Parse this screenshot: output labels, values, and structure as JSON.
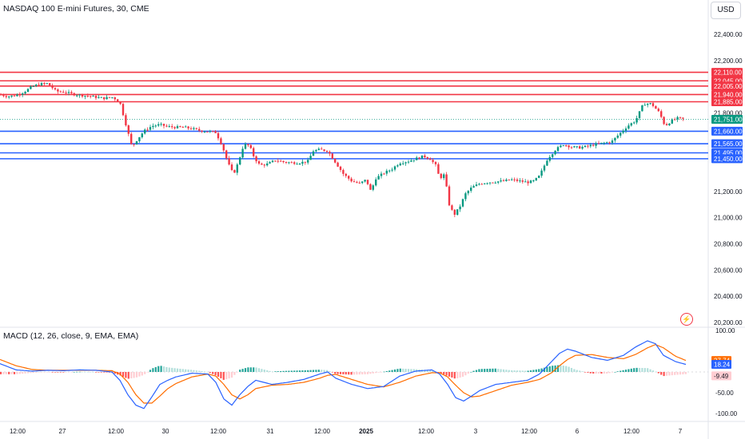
{
  "symbol_title": "NASDAQ 100 E-mini Futures, 30, CME",
  "currency_button": "USD",
  "alert_icon": "lightning-icon",
  "chart_data": [
    {
      "type": "candlestick",
      "title": "NASDAQ 100 E-mini Futures, 30, CME",
      "ylim": [
        20200,
        22500
      ],
      "y_ticks": [
        {
          "label": "22,400.00",
          "value": 22400
        },
        {
          "label": "22,200.00",
          "value": 22200
        },
        {
          "label": "21,800.00",
          "value": 21800
        },
        {
          "label": "21,200.00",
          "value": 21200
        },
        {
          "label": "21,000.00",
          "value": 21000
        },
        {
          "label": "20,800.00",
          "value": 20800
        },
        {
          "label": "20,600.00",
          "value": 20600
        },
        {
          "label": "20,400.00",
          "value": 20400
        },
        {
          "label": "20,200.00",
          "value": 20200
        }
      ],
      "x_ticks": [
        "12:00",
        "27",
        "12:00",
        "30",
        "12:00",
        "31",
        "12:00",
        "2025",
        "12:00",
        "3",
        "12:00",
        "6",
        "12:00",
        "7"
      ],
      "resistance_levels": [
        {
          "label": "22,110.00",
          "value": 22110
        },
        {
          "label": "22,045.00",
          "value": 22045
        },
        {
          "label": "22,005.00",
          "value": 22005
        },
        {
          "label": "21,940.00",
          "value": 21940
        },
        {
          "label": "21,885.00",
          "value": 21885
        }
      ],
      "support_levels": [
        {
          "label": "21,660.00",
          "value": 21660
        },
        {
          "label": "21,565.00",
          "value": 21565
        },
        {
          "label": "21,495.00",
          "value": 21495
        },
        {
          "label": "21,450.00",
          "value": 21450
        }
      ],
      "last_price": {
        "label": "21,751.00",
        "value": 21751
      },
      "path_points": [
        [
          0,
          21940
        ],
        [
          10,
          21925
        ],
        [
          20,
          21935
        ],
        [
          30,
          21960
        ],
        [
          40,
          22000
        ],
        [
          50,
          22020
        ],
        [
          60,
          22025
        ],
        [
          70,
          21965
        ],
        [
          80,
          21960
        ],
        [
          90,
          21945
        ],
        [
          100,
          21935
        ],
        [
          110,
          21930
        ],
        [
          120,
          21920
        ],
        [
          130,
          21912
        ],
        [
          140,
          21920
        ],
        [
          145,
          21905
        ],
        [
          150,
          21880
        ],
        [
          158,
          21700
        ],
        [
          165,
          21540
        ],
        [
          172,
          21600
        ],
        [
          180,
          21660
        ],
        [
          190,
          21700
        ],
        [
          200,
          21710
        ],
        [
          210,
          21695
        ],
        [
          220,
          21690
        ],
        [
          230,
          21690
        ],
        [
          240,
          21680
        ],
        [
          250,
          21665
        ],
        [
          260,
          21660
        ],
        [
          270,
          21650
        ],
        [
          278,
          21550
        ],
        [
          285,
          21420
        ],
        [
          292,
          21330
        ],
        [
          298,
          21420
        ],
        [
          305,
          21560
        ],
        [
          312,
          21550
        ],
        [
          318,
          21460
        ],
        [
          325,
          21400
        ],
        [
          335,
          21410
        ],
        [
          345,
          21440
        ],
        [
          355,
          21425
        ],
        [
          365,
          21420
        ],
        [
          375,
          21420
        ],
        [
          385,
          21430
        ],
        [
          392,
          21510
        ],
        [
          400,
          21520
        ],
        [
          410,
          21510
        ],
        [
          420,
          21420
        ],
        [
          430,
          21330
        ],
        [
          440,
          21280
        ],
        [
          450,
          21260
        ],
        [
          458,
          21290
        ],
        [
          464,
          21200
        ],
        [
          470,
          21300
        ],
        [
          480,
          21340
        ],
        [
          490,
          21370
        ],
        [
          500,
          21420
        ],
        [
          510,
          21430
        ],
        [
          520,
          21450
        ],
        [
          530,
          21470
        ],
        [
          538,
          21450
        ],
        [
          545,
          21400
        ],
        [
          550,
          21300
        ],
        [
          556,
          21330
        ],
        [
          562,
          21100
        ],
        [
          568,
          21020
        ],
        [
          575,
          21080
        ],
        [
          582,
          21180
        ],
        [
          590,
          21230
        ],
        [
          600,
          21260
        ],
        [
          610,
          21270
        ],
        [
          620,
          21275
        ],
        [
          630,
          21280
        ],
        [
          640,
          21290
        ],
        [
          650,
          21280
        ],
        [
          660,
          21270
        ],
        [
          668,
          21280
        ],
        [
          675,
          21320
        ],
        [
          685,
          21450
        ],
        [
          695,
          21520
        ],
        [
          705,
          21560
        ],
        [
          715,
          21540
        ],
        [
          725,
          21535
        ],
        [
          735,
          21545
        ],
        [
          745,
          21560
        ],
        [
          755,
          21570
        ],
        [
          765,
          21580
        ],
        [
          775,
          21640
        ],
        [
          785,
          21700
        ],
        [
          795,
          21740
        ],
        [
          805,
          21870
        ],
        [
          815,
          21870
        ],
        [
          825,
          21800
        ],
        [
          832,
          21700
        ],
        [
          840,
          21740
        ],
        [
          848,
          21760
        ],
        [
          856,
          21751
        ]
      ]
    },
    {
      "type": "macd",
      "title": "MACD (12, 26, close, 9, EMA, EMA)",
      "ylim": [
        -100,
        100
      ],
      "y_ticks": [
        {
          "label": "100.00",
          "value": 100
        },
        {
          "label": "-50.00",
          "value": -50
        },
        {
          "label": "-100.00",
          "value": -100
        }
      ],
      "value_badges": [
        {
          "label": "27.74",
          "value": 27.74,
          "color": "#ff6d00"
        },
        {
          "label": "18.24",
          "value": 18.24,
          "color": "#2962ff"
        },
        {
          "label": "-9.49",
          "value": -9.49,
          "color": "#ffcdd2"
        }
      ],
      "macd_points": [
        [
          0,
          20
        ],
        [
          20,
          5
        ],
        [
          40,
          2
        ],
        [
          60,
          4
        ],
        [
          80,
          3
        ],
        [
          100,
          5
        ],
        [
          120,
          4
        ],
        [
          140,
          0
        ],
        [
          150,
          -20
        ],
        [
          160,
          -55
        ],
        [
          170,
          -80
        ],
        [
          180,
          -88
        ],
        [
          190,
          -60
        ],
        [
          200,
          -30
        ],
        [
          210,
          -20
        ],
        [
          220,
          -12
        ],
        [
          240,
          -3
        ],
        [
          260,
          -5
        ],
        [
          270,
          -25
        ],
        [
          280,
          -65
        ],
        [
          290,
          -80
        ],
        [
          300,
          -55
        ],
        [
          310,
          -35
        ],
        [
          320,
          -20
        ],
        [
          340,
          -30
        ],
        [
          360,
          -25
        ],
        [
          380,
          -18
        ],
        [
          400,
          -5
        ],
        [
          410,
          0
        ],
        [
          420,
          -15
        ],
        [
          440,
          -30
        ],
        [
          460,
          -40
        ],
        [
          480,
          -35
        ],
        [
          500,
          -10
        ],
        [
          520,
          2
        ],
        [
          540,
          5
        ],
        [
          550,
          -5
        ],
        [
          560,
          -30
        ],
        [
          570,
          -62
        ],
        [
          580,
          -70
        ],
        [
          590,
          -58
        ],
        [
          600,
          -45
        ],
        [
          620,
          -30
        ],
        [
          640,
          -25
        ],
        [
          660,
          -20
        ],
        [
          675,
          -5
        ],
        [
          690,
          25
        ],
        [
          700,
          45
        ],
        [
          710,
          55
        ],
        [
          720,
          50
        ],
        [
          740,
          35
        ],
        [
          760,
          28
        ],
        [
          780,
          40
        ],
        [
          795,
          60
        ],
        [
          810,
          75
        ],
        [
          820,
          68
        ],
        [
          830,
          40
        ],
        [
          845,
          25
        ],
        [
          858,
          18.24
        ]
      ],
      "signal_points": [
        [
          0,
          30
        ],
        [
          20,
          15
        ],
        [
          40,
          6
        ],
        [
          60,
          4
        ],
        [
          80,
          4
        ],
        [
          100,
          4
        ],
        [
          120,
          4
        ],
        [
          140,
          3
        ],
        [
          150,
          -5
        ],
        [
          160,
          -25
        ],
        [
          170,
          -55
        ],
        [
          180,
          -75
        ],
        [
          190,
          -75
        ],
        [
          200,
          -58
        ],
        [
          210,
          -40
        ],
        [
          220,
          -28
        ],
        [
          240,
          -12
        ],
        [
          260,
          -5
        ],
        [
          270,
          -10
        ],
        [
          280,
          -30
        ],
        [
          290,
          -55
        ],
        [
          300,
          -65
        ],
        [
          310,
          -55
        ],
        [
          320,
          -40
        ],
        [
          340,
          -32
        ],
        [
          360,
          -30
        ],
        [
          380,
          -25
        ],
        [
          400,
          -15
        ],
        [
          410,
          -8
        ],
        [
          420,
          -6
        ],
        [
          440,
          -18
        ],
        [
          460,
          -30
        ],
        [
          480,
          -36
        ],
        [
          500,
          -25
        ],
        [
          520,
          -10
        ],
        [
          540,
          -2
        ],
        [
          550,
          -2
        ],
        [
          560,
          -12
        ],
        [
          570,
          -32
        ],
        [
          580,
          -50
        ],
        [
          590,
          -60
        ],
        [
          600,
          -58
        ],
        [
          620,
          -45
        ],
        [
          640,
          -32
        ],
        [
          660,
          -25
        ],
        [
          675,
          -18
        ],
        [
          690,
          -2
        ],
        [
          700,
          15
        ],
        [
          710,
          30
        ],
        [
          720,
          40
        ],
        [
          740,
          42
        ],
        [
          760,
          35
        ],
        [
          780,
          32
        ],
        [
          795,
          42
        ],
        [
          810,
          58
        ],
        [
          820,
          66
        ],
        [
          830,
          58
        ],
        [
          845,
          38
        ],
        [
          858,
          27.74
        ]
      ]
    }
  ]
}
